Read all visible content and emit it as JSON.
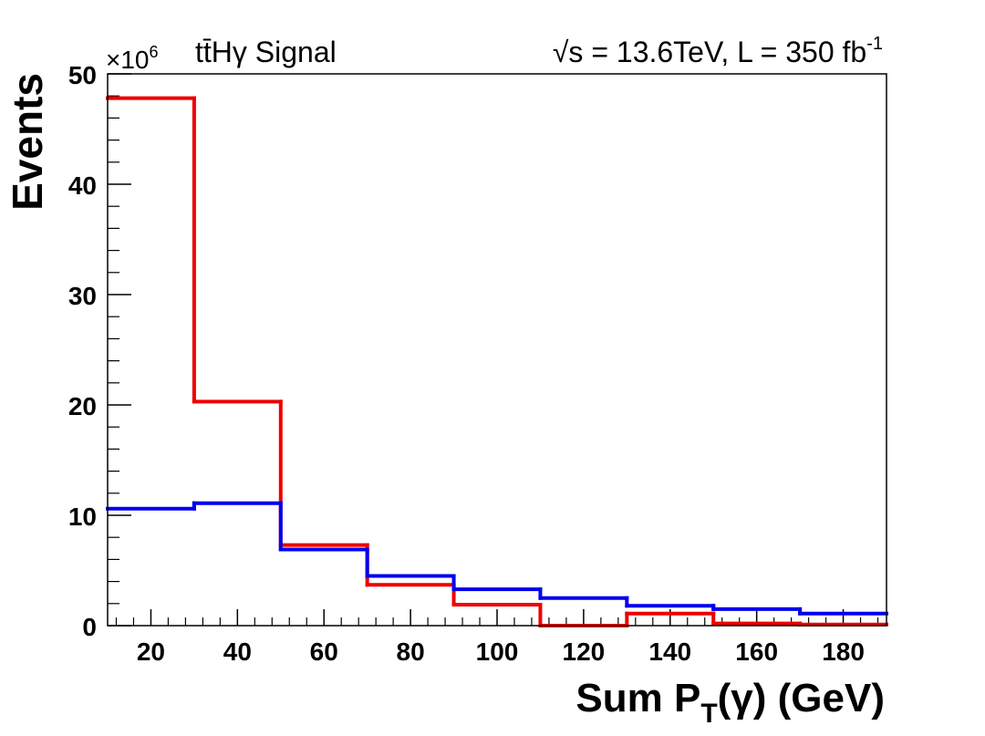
{
  "chart_data": {
    "type": "step",
    "title_left": "tt̄Hγ Signal",
    "title_right_sqrt": "√s",
    "title_right_main": " = 13.6TeV, L = 350 fb",
    "title_right_sup": "-1",
    "xlabel_main": "Sum P",
    "xlabel_sub": "T",
    "xlabel_rest": "(γ) (GeV)",
    "ylabel": "Events",
    "y_multiplier_base": "×10",
    "y_multiplier_exp": "6",
    "xlim": [
      10,
      190
    ],
    "ylim": [
      0,
      50
    ],
    "x_ticks": [
      20,
      40,
      60,
      80,
      100,
      120,
      140,
      160,
      180
    ],
    "y_ticks": [
      0,
      10,
      20,
      30,
      40,
      50
    ],
    "bin_edges": [
      10,
      30,
      50,
      70,
      90,
      110,
      130,
      150,
      170,
      190
    ],
    "series": [
      {
        "name": "red",
        "color": "#ee0000",
        "values": [
          47.8,
          20.3,
          7.3,
          3.7,
          1.9,
          0.0,
          1.1,
          0.2,
          0.1
        ]
      },
      {
        "name": "blue",
        "color": "#0000ee",
        "values": [
          10.6,
          11.1,
          6.9,
          4.5,
          3.3,
          2.5,
          1.8,
          1.5,
          1.1
        ]
      }
    ]
  }
}
